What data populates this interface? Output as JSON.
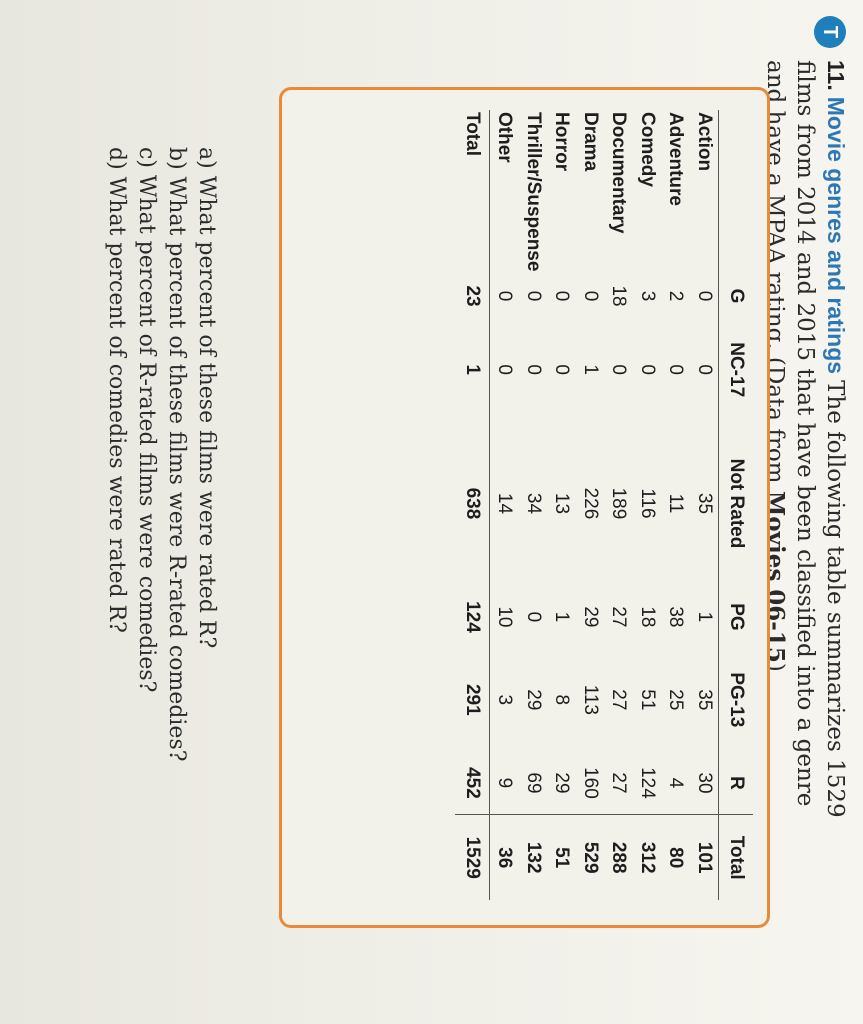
{
  "problem": {
    "badge": "T",
    "number": "11.",
    "title": "Movie genres and ratings",
    "text": "The following table summarizes 1529 films from 2014 and 2015 that have been classified into a genre and have a MPAA rating. (Data from",
    "source": "Movies 06-15",
    "closing": ")"
  },
  "table": {
    "columns": [
      "G",
      "NC-17",
      "Not Rated",
      "PG",
      "PG-13",
      "R",
      "Total"
    ],
    "rows": [
      {
        "genre": "Action",
        "values": [
          "0",
          "0",
          "35",
          "1",
          "35",
          "30",
          "101"
        ]
      },
      {
        "genre": "Adventure",
        "values": [
          "2",
          "0",
          "11",
          "38",
          "25",
          "4",
          "80"
        ]
      },
      {
        "genre": "Comedy",
        "values": [
          "3",
          "0",
          "116",
          "18",
          "51",
          "124",
          "312"
        ]
      },
      {
        "genre": "Documentary",
        "values": [
          "18",
          "0",
          "189",
          "27",
          "27",
          "27",
          "288"
        ]
      },
      {
        "genre": "Drama",
        "values": [
          "0",
          "1",
          "226",
          "29",
          "113",
          "160",
          "529"
        ]
      },
      {
        "genre": "Horror",
        "values": [
          "0",
          "0",
          "13",
          "1",
          "8",
          "29",
          "51"
        ]
      },
      {
        "genre": "Thriller/Suspense",
        "values": [
          "0",
          "0",
          "34",
          "0",
          "29",
          "69",
          "132"
        ]
      },
      {
        "genre": "Other",
        "values": [
          "0",
          "0",
          "14",
          "10",
          "3",
          "9",
          "36"
        ]
      }
    ],
    "total": {
      "label": "Total",
      "values": [
        "23",
        "1",
        "638",
        "124",
        "291",
        "452",
        "1529"
      ]
    }
  },
  "questions": [
    "a) What percent of these films were rated R?",
    "b) What percent of these films were R-rated comedies?",
    "c) What percent of R-rated films were comedies?",
    "d) What percent of comedies were rated R?"
  ],
  "colors": {
    "accent_blue": "#2d78b4",
    "box_border": "#e98a3a"
  }
}
